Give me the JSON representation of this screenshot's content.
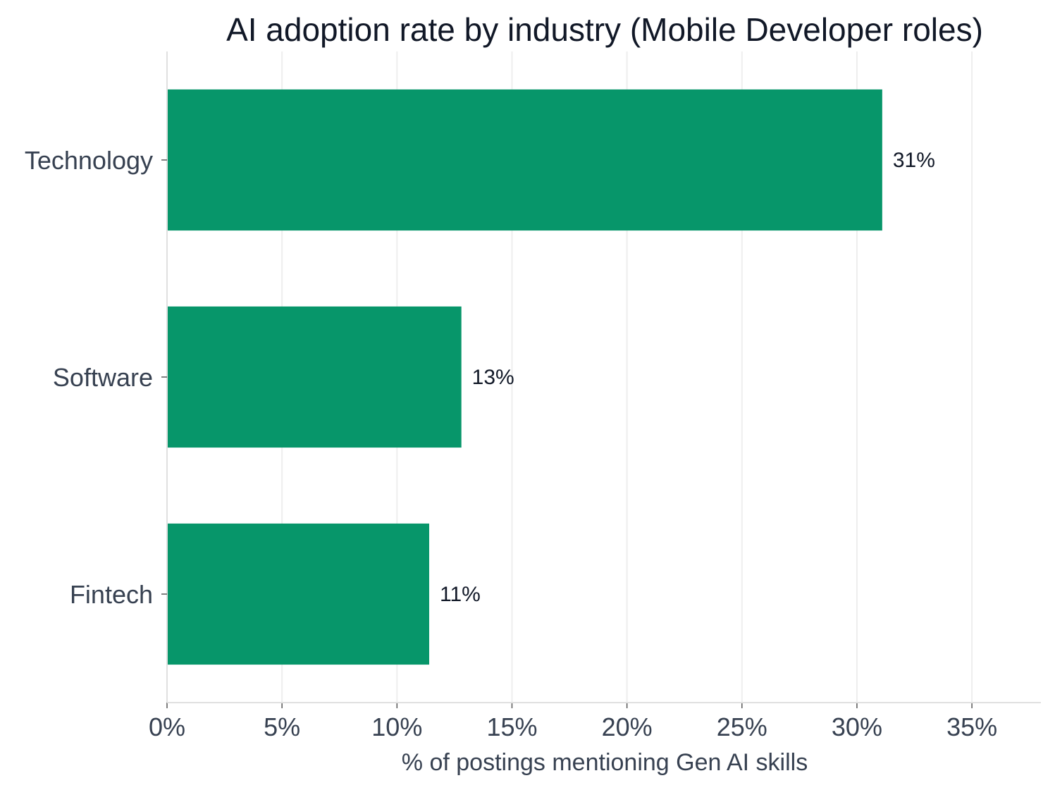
{
  "colors": {
    "bar": "#07966a",
    "grid": "#eeeeee",
    "axis": "#e0e0e0",
    "tick": "#555555"
  },
  "chart_data": {
    "type": "bar",
    "orientation": "horizontal",
    "title": "AI adoption rate by industry (Mobile Developer roles)",
    "xlabel": "% of postings mentioning Gen AI skills",
    "ylabel": "",
    "categories": [
      "Technology",
      "Software",
      "Fintech"
    ],
    "values": [
      31.1,
      12.8,
      11.4
    ],
    "value_labels": [
      "31%",
      "13%",
      "11%"
    ],
    "xlim": [
      0,
      38
    ],
    "x_ticks": [
      0,
      5,
      10,
      15,
      20,
      25,
      30,
      35
    ],
    "x_tick_labels": [
      "0%",
      "5%",
      "10%",
      "15%",
      "20%",
      "25%",
      "30%",
      "35%"
    ],
    "grid": "vertical",
    "legend": "none"
  }
}
